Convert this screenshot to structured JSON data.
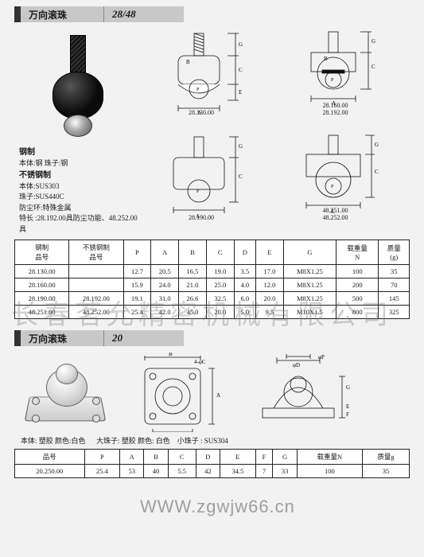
{
  "section1": {
    "title": "万向滚珠",
    "code": "28/48",
    "material_steel_h": "钢制",
    "material_steel_1": "本体:钢 珠子:钢",
    "material_sus_h": "不锈钢制",
    "material_sus_1": "本体:SUS303",
    "material_sus_2": "珠子:SUS440C",
    "material_sus_3": "防尘环:特殊金属",
    "material_note": "特长 :28.192.00具防尘功能、48.252.00具",
    "dwg_labels": {
      "d1": "28.130.00",
      "d2a": "28.160.00",
      "d2b": "28.192.00",
      "d3": "28.190.00",
      "d4a": "48.251.00",
      "d4b": "48.252.00"
    },
    "dim_letters": {
      "A": "A",
      "B": "B",
      "C": "C",
      "D": "D",
      "E": "E",
      "G": "G",
      "P": "P"
    },
    "table1": {
      "headers": [
        "钢制\n品号",
        "不锈钢制\n品号",
        "P",
        "A",
        "B",
        "C",
        "D",
        "E",
        "G",
        "载重量\nN",
        "质量\n(g)"
      ],
      "rows": [
        [
          "28.130.00",
          "",
          "12.7",
          "20.5",
          "16.5",
          "19.0",
          "3.5",
          "17.0",
          "M8X1.25",
          "100",
          "35"
        ],
        [
          "28.160.00",
          "",
          "15.9",
          "24.0",
          "21.0",
          "25.0",
          "4.0",
          "12.0",
          "M8X1.25",
          "200",
          "70"
        ],
        [
          "28.190.00",
          "28.192.00",
          "19.1",
          "31.0",
          "26.6",
          "32.5",
          "6.0",
          "20.0",
          "M8X1.25",
          "500",
          "145"
        ],
        [
          "48.251.00",
          "48.252.00",
          "25.4",
          "42.0",
          "45.0",
          "20.0",
          "5.0",
          "9.5",
          "M10X1.5",
          "800",
          "325"
        ]
      ]
    }
  },
  "section2": {
    "title": "万向滚珠",
    "code": "20",
    "mat_body": "本体: 塑胶 颜色:白色",
    "mat_big": "大珠子: 塑胶 颜色: 白色",
    "mat_small": "小珠子 : SUS304",
    "dim_phi_c": "4-φC",
    "dim_phi_d": "φD",
    "dim_phi_p": "φP",
    "table2": {
      "headers": [
        "品号",
        "P",
        "A",
        "B",
        "C",
        "D",
        "E",
        "F",
        "G",
        "载重量N",
        "质量g"
      ],
      "rows": [
        [
          "20.250.00",
          "25.4",
          "53",
          "40",
          "5.5",
          "42",
          "34.5",
          "7",
          "33",
          "100",
          "35"
        ]
      ]
    }
  },
  "watermark1": "长春茗允精密机械有限公司",
  "watermark2": "WWW.zgwjw66.cn"
}
